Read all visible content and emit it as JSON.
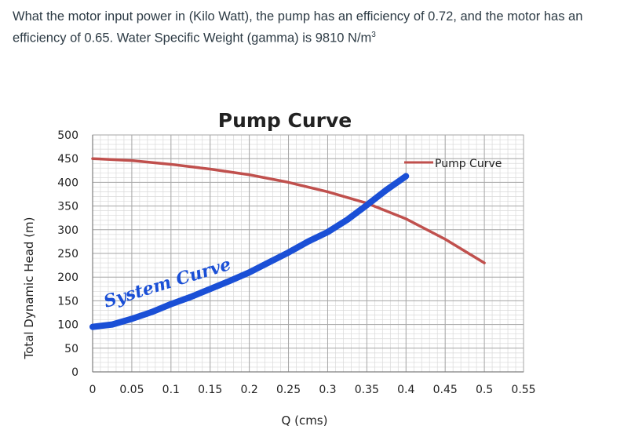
{
  "question": {
    "text_main": "What the motor input power in (Kilo Watt), the pump has an efficiency of 0.72, and the motor has an efficiency of 0.65.  Water Specific Weight (gamma) is 9810 N/m",
    "unit_superscript": "3"
  },
  "chart_data": {
    "type": "line",
    "title": "Pump Curve",
    "xlabel": "Q (cms)",
    "ylabel": "Total Dynamic Head (m)",
    "xlim": [
      0,
      0.55
    ],
    "ylim": [
      0,
      500
    ],
    "x_ticks": [
      "0",
      "0.05",
      "0.1",
      "0.15",
      "0.2",
      "0.25",
      "0.3",
      "0.35",
      "0.4",
      "0.45",
      "0.5",
      "0.55"
    ],
    "y_ticks": [
      "0",
      "50",
      "100",
      "150",
      "200",
      "250",
      "300",
      "350",
      "400",
      "450",
      "500"
    ],
    "grid": true,
    "legend_position": "top-right",
    "series": [
      {
        "name": "Pump Curve",
        "color": "#c0504d",
        "x": [
          0,
          0.05,
          0.1,
          0.15,
          0.2,
          0.25,
          0.3,
          0.35,
          0.4,
          0.45,
          0.5
        ],
        "y": [
          450,
          446,
          438,
          428,
          416,
          400,
          380,
          356,
          323,
          280,
          230
        ]
      },
      {
        "color": "#1a4fd6",
        "x": [
          0,
          0.025,
          0.05,
          0.075,
          0.1,
          0.125,
          0.15,
          0.175,
          0.2,
          0.225,
          0.25,
          0.275,
          0.3,
          0.325,
          0.35,
          0.375,
          0.4
        ],
        "y": [
          95,
          100,
          112,
          126,
          143,
          158,
          175,
          192,
          210,
          231,
          252,
          275,
          295,
          321,
          352,
          384,
          413
        ]
      }
    ],
    "annotations": [
      {
        "text": "System Curve",
        "color": "#1a4fd6"
      }
    ]
  }
}
